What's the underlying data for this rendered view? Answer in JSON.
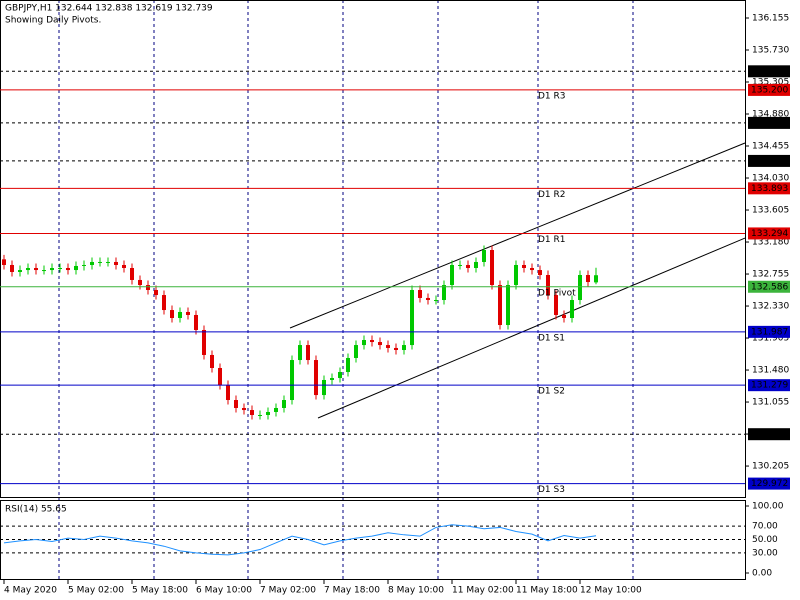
{
  "chart_data": {
    "type": "candlestick",
    "title": "GBPJPY,H1  132.644 132.838 132.619 132.739",
    "subtitle": "Showing Daily Pivots.",
    "up_color": "#00c800",
    "down_color": "#e00000",
    "open": [
      132.95,
      132.875,
      132.782,
      132.808,
      132.835,
      132.808,
      132.808,
      132.835,
      132.835,
      132.808,
      132.862,
      132.875,
      132.915,
      132.915,
      132.915,
      132.875,
      132.835,
      132.676,
      132.609,
      132.543,
      132.476,
      132.277,
      132.171,
      132.251,
      132.211,
      132.012,
      131.68,
      131.507,
      131.281,
      131.082,
      130.976,
      130.949,
      130.883,
      130.883,
      130.923,
      130.976,
      131.082,
      131.613,
      131.812,
      131.613,
      131.148,
      131.348,
      131.374,
      131.454,
      131.64,
      131.812,
      131.879,
      131.852,
      131.812,
      131.773,
      131.746,
      131.812,
      132.543,
      132.437,
      132.41,
      132.41,
      132.609,
      132.875,
      132.875,
      132.835,
      132.915,
      133.074,
      132.609,
      132.078,
      132.609,
      132.875,
      132.835,
      132.808,
      132.742,
      132.476,
      132.211,
      132.171,
      132.41,
      132.742,
      132.644
    ],
    "high": [
      133.01,
      132.935,
      132.868,
      132.895,
      132.895,
      132.868,
      132.895,
      132.895,
      132.895,
      132.922,
      132.935,
      132.975,
      132.975,
      132.975,
      132.975,
      132.935,
      132.895,
      132.736,
      132.669,
      132.603,
      132.536,
      132.337,
      132.311,
      132.311,
      132.271,
      132.072,
      131.74,
      131.567,
      131.341,
      131.142,
      131.036,
      131.009,
      130.943,
      130.983,
      131.036,
      131.142,
      131.673,
      131.872,
      131.872,
      131.673,
      131.408,
      131.434,
      131.514,
      131.7,
      131.872,
      131.939,
      131.939,
      131.912,
      131.872,
      131.833,
      131.872,
      132.603,
      132.603,
      132.497,
      132.47,
      132.669,
      132.935,
      132.935,
      132.935,
      132.975,
      133.134,
      133.134,
      132.669,
      132.669,
      132.935,
      132.935,
      132.895,
      132.868,
      132.802,
      132.536,
      132.271,
      132.47,
      132.802,
      132.802,
      132.838
    ],
    "low": [
      132.815,
      132.722,
      132.722,
      132.748,
      132.748,
      132.748,
      132.748,
      132.775,
      132.748,
      132.748,
      132.802,
      132.815,
      132.855,
      132.855,
      132.815,
      132.775,
      132.616,
      132.549,
      132.483,
      132.416,
      132.217,
      132.111,
      132.111,
      132.151,
      131.952,
      131.62,
      131.447,
      131.221,
      131.022,
      130.916,
      130.889,
      130.823,
      130.823,
      130.823,
      130.863,
      130.916,
      131.022,
      131.553,
      131.553,
      131.088,
      131.088,
      131.288,
      131.314,
      131.394,
      131.58,
      131.752,
      131.792,
      131.752,
      131.713,
      131.686,
      131.686,
      131.752,
      132.377,
      132.35,
      132.35,
      132.35,
      132.549,
      132.815,
      132.775,
      132.775,
      132.855,
      132.549,
      132.018,
      132.018,
      132.549,
      132.775,
      132.748,
      132.682,
      132.416,
      132.151,
      132.111,
      132.111,
      132.35,
      132.589,
      132.619
    ],
    "close": [
      132.875,
      132.782,
      132.808,
      132.835,
      132.808,
      132.808,
      132.835,
      132.835,
      132.808,
      132.862,
      132.875,
      132.915,
      132.915,
      132.915,
      132.875,
      132.835,
      132.676,
      132.609,
      132.543,
      132.476,
      132.277,
      132.171,
      132.251,
      132.211,
      132.012,
      131.68,
      131.507,
      131.281,
      131.082,
      130.976,
      130.949,
      130.883,
      130.883,
      130.923,
      130.976,
      131.082,
      131.613,
      131.812,
      131.613,
      131.148,
      131.348,
      131.374,
      131.454,
      131.64,
      131.812,
      131.879,
      131.852,
      131.812,
      131.773,
      131.746,
      131.812,
      132.543,
      132.437,
      132.41,
      132.41,
      132.609,
      132.875,
      132.875,
      132.835,
      132.915,
      133.074,
      132.609,
      132.078,
      132.609,
      132.875,
      132.835,
      132.808,
      132.742,
      132.476,
      132.211,
      132.171,
      132.41,
      132.742,
      132.649,
      132.739
    ],
    "ylim": [
      129.794,
      136.394
    ],
    "yticks": [
      136.155,
      {
        "value": 135.73,
        "label": "135.730"
      },
      135.305,
      {
        "value": 134.88,
        "label": "134.880"
      },
      134.455,
      {
        "value": 134.03,
        "label": "134.030"
      },
      133.605,
      {
        "value": 133.18,
        "label": "133.180"
      },
      132.755,
      {
        "value": 132.33,
        "label": "132.330"
      },
      131.905,
      {
        "value": 131.48,
        "label": "131.480"
      },
      131.055,
      {
        "value": 130.63,
        "label": "130.630"
      },
      130.205
    ],
    "xlabels": [
      "4 May 2020",
      "5 May 02:00",
      "5 May 18:00",
      "6 May 10:00",
      "7 May 02:00",
      "7 May 18:00",
      "8 May 10:00",
      "11 May 02:00",
      "11 May 18:00",
      "12 May 10:00"
    ],
    "levels": {
      "values": [
        135.447,
        135.2,
        134.762,
        134.257,
        133.893,
        133.294,
        132.586,
        131.987,
        131.279,
        130.628,
        129.972
      ],
      "value_labels": [
        "135.447",
        "135.200",
        "134.762",
        "134.257",
        "133.893",
        "133.294",
        "132.586",
        "131.987",
        "131.279",
        "130.628",
        "129.972"
      ],
      "names": [
        null,
        "D1 R3",
        null,
        null,
        "D1 R2",
        "D1 R1",
        "D1 Pivot",
        "D1 S1",
        "D1 S2",
        null,
        "D1 S3"
      ],
      "colors": [
        "#000000",
        "#e00000",
        "#000000",
        "#000000",
        "#e00000",
        "#e00000",
        "#3cb43c",
        "#0000c8",
        "#0000c8",
        "#000000",
        "#0000c8"
      ],
      "dashed": [
        true,
        false,
        true,
        true,
        false,
        false,
        false,
        false,
        false,
        true,
        false
      ]
    },
    "channel": {
      "upper": [
        132.038,
        134.495
      ],
      "lower": [
        130.843,
        133.233
      ]
    },
    "rsi": {
      "title": "RSI(14) 55.65",
      "color": "#1e90ff",
      "values": [
        45,
        48,
        50,
        47,
        52,
        50,
        55,
        52,
        48,
        45,
        40,
        33,
        30,
        28,
        27,
        30,
        35,
        45,
        55,
        50,
        42,
        48,
        52,
        55,
        60,
        57,
        55,
        68,
        72,
        70,
        66,
        68,
        62,
        58,
        48,
        56,
        52,
        55.65
      ],
      "ylim": [
        0,
        100
      ],
      "yticks": [
        {
          "value": 100,
          "label": "100.00"
        },
        {
          "value": 70,
          "label": "70.00"
        },
        {
          "value": 50,
          "label": "50.00"
        },
        {
          "value": 30,
          "label": "30.00"
        },
        {
          "value": 0,
          "label": "0.00"
        }
      ]
    }
  }
}
